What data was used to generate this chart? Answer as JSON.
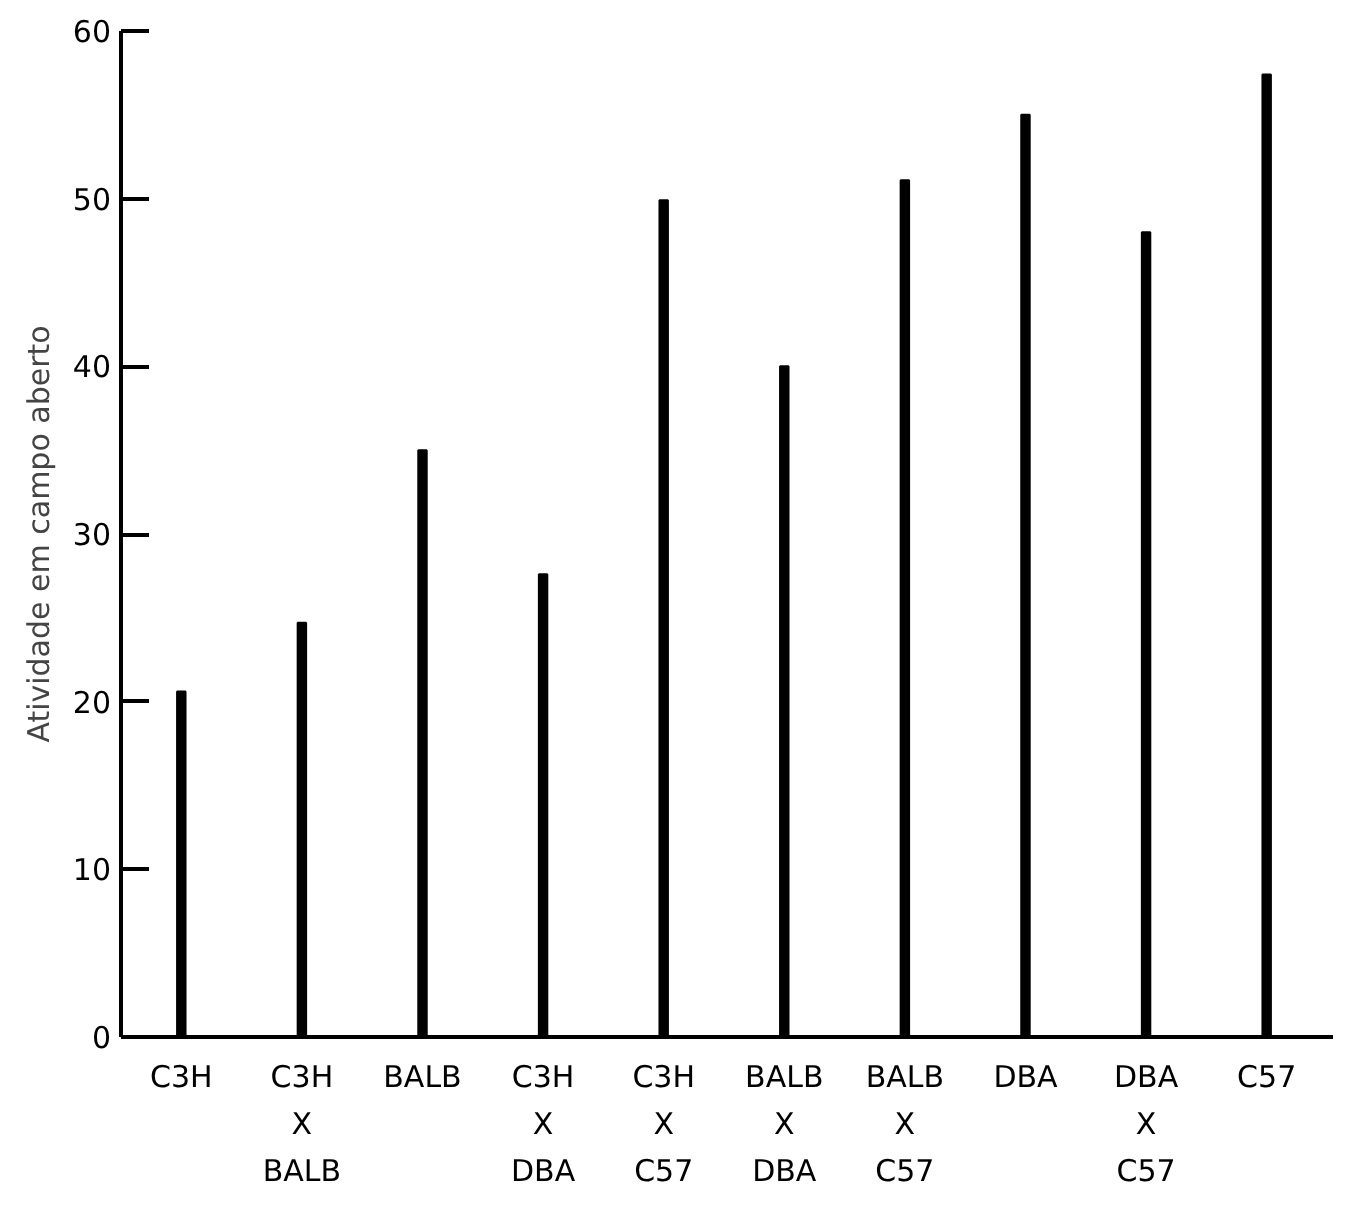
{
  "chart_data": {
    "type": "bar",
    "ylabel": "Atividade em campo aberto",
    "categories": [
      "C3H",
      "C3H\nX\nBALB",
      "BALB",
      "C3H\nX\nDBA",
      "C3H\nX\nC57",
      "BALB\nX\nDBA",
      "BALB\nX\nC57",
      "DBA",
      "DBA\nX\nC57",
      "C57"
    ],
    "values": [
      20.6,
      24.7,
      35,
      27.6,
      49.9,
      40,
      51.1,
      55,
      48,
      57.4
    ],
    "color": "#000000",
    "ylim": [
      0,
      60
    ],
    "yticks": [
      0,
      10,
      20,
      30,
      40,
      50,
      60
    ],
    "grid": false
  }
}
